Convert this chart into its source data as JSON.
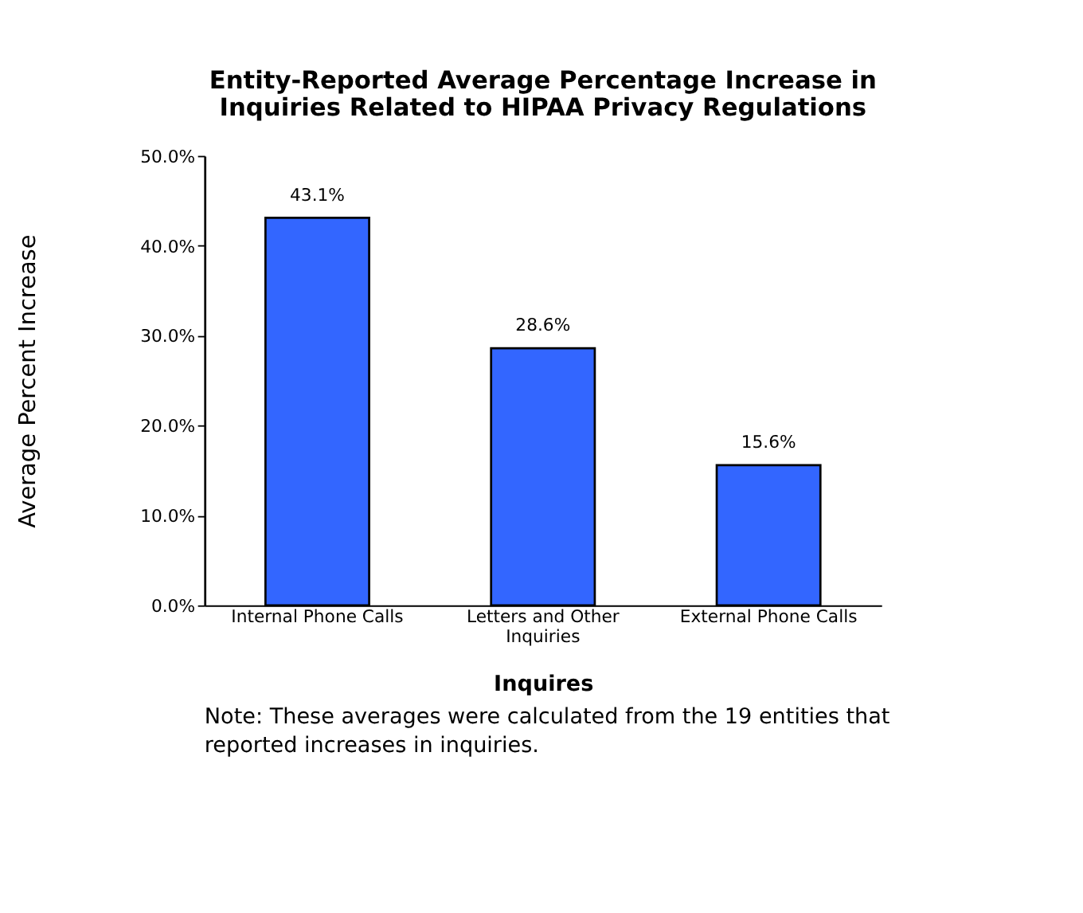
{
  "chart_data": {
    "type": "bar",
    "title": "Entity-Reported Average Percentage Increase in Inquiries Related to HIPAA Privacy Regulations",
    "xlabel": "Inquires",
    "ylabel": "Average Percent Increase",
    "categories": [
      "Internal Phone Calls",
      "Letters and Other Inquiries",
      "External Phone Calls"
    ],
    "values": [
      43.1,
      28.6,
      15.6
    ],
    "value_labels": [
      "43.1%",
      "28.6%",
      "15.6%"
    ],
    "color": "#3366ff",
    "ylim": [
      0,
      50
    ],
    "yticks": [
      {
        "value": 0,
        "label": "0.0%"
      },
      {
        "value": 10,
        "label": "10.0%"
      },
      {
        "value": 20,
        "label": "20.0%"
      },
      {
        "value": 30,
        "label": "30.0%"
      },
      {
        "value": 40,
        "label": "40.0%"
      },
      {
        "value": 50,
        "label": "50.0%"
      }
    ],
    "grid": false,
    "annotations": [
      "Note:   These averages were calculated from the 19 entities that reported increases in inquiries."
    ]
  }
}
